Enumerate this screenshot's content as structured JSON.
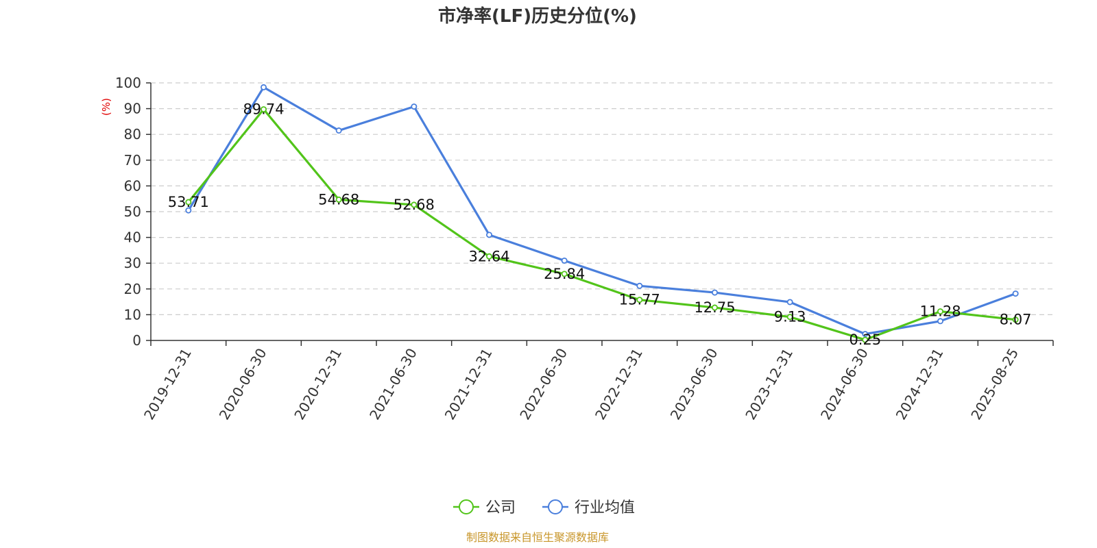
{
  "chart_data": {
    "type": "line",
    "title": "市净率(LF)历史分位(%)",
    "ylabel": "(%)",
    "ylim": [
      0,
      100
    ],
    "y_ticks": [
      0,
      10,
      20,
      30,
      40,
      50,
      60,
      70,
      80,
      90,
      100
    ],
    "x": [
      "2019-12-31",
      "2020-06-30",
      "2020-12-31",
      "2021-06-30",
      "2021-12-31",
      "2022-06-30",
      "2022-12-31",
      "2023-06-30",
      "2023-12-31",
      "2024-06-30",
      "2024-12-31",
      "2025-08-25"
    ],
    "grid": true,
    "legend_position": "bottom",
    "series": [
      {
        "name": "公司",
        "color": "#52c41a",
        "values": [
          53.71,
          89.74,
          54.68,
          52.68,
          32.64,
          25.84,
          15.77,
          12.75,
          9.13,
          0.25,
          11.28,
          8.07
        ],
        "labels": [
          "53.71",
          "89.74",
          "54.68",
          "52.68",
          "32.64",
          "25.84",
          "15.77",
          "12.75",
          "9.13",
          "0.25",
          "11.28",
          "8.07"
        ]
      },
      {
        "name": "行业均值",
        "color": "#4a7fdc",
        "values": [
          50.5,
          98.3,
          81.5,
          90.8,
          41.0,
          31.0,
          21.2,
          18.6,
          14.9,
          2.5,
          7.5,
          18.2
        ]
      }
    ],
    "source": "制图数据来自恒生聚源数据库",
    "source_color": "#c8962a",
    "ylabel_color": "#e00000"
  }
}
